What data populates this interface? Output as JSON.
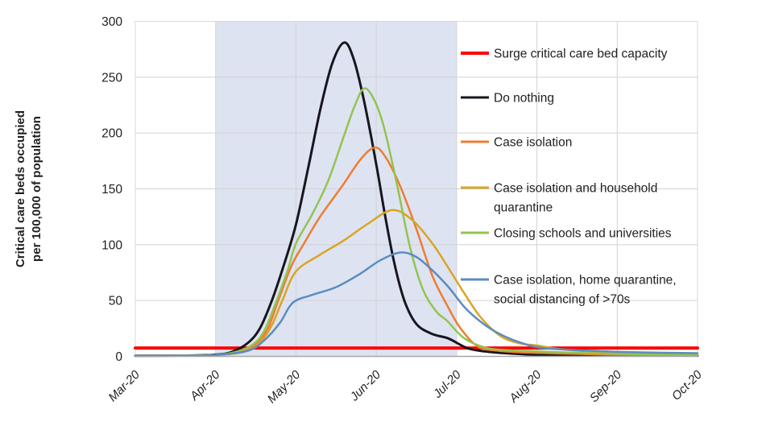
{
  "figure": {
    "background": "#ffffff",
    "border_color": "#d9d9d9",
    "gridline_color": "#d2d2d2",
    "axis_line_color": "#a6a6a6"
  },
  "chart_data": {
    "type": "line",
    "title": "",
    "ylabel_lines": [
      "Critical care beds occupied",
      "per 100,000 of population"
    ],
    "xlabel": "",
    "x_tick_labels": [
      "Mar-20",
      "Apr-20",
      "May-20",
      "Jun-20",
      "Jul-20",
      "Aug-20",
      "Sep-20",
      "Oct-20"
    ],
    "x_months_range": [
      0,
      7
    ],
    "y_ticks": [
      0,
      50,
      100,
      150,
      200,
      250,
      300
    ],
    "ylim": [
      0,
      300
    ],
    "grid": true,
    "legend_position": "right-inside",
    "shaded_region": {
      "from_month": 1,
      "to_month": 4,
      "from_label": "Apr-20",
      "to_label": "Jul-20",
      "color": "#dee3f2"
    },
    "series": [
      {
        "name": "Surge critical care bed capacity",
        "color": "#fe0000",
        "width": 4,
        "straight": true,
        "points": [
          [
            0,
            7.5
          ],
          [
            7,
            7.5
          ]
        ]
      },
      {
        "name": "Do nothing",
        "color": "#16161e",
        "width": 3,
        "peak": {
          "month": 2.6,
          "value": 281
        },
        "points": [
          [
            0,
            0.5
          ],
          [
            0.6,
            0.7
          ],
          [
            1,
            1.5
          ],
          [
            1.2,
            4
          ],
          [
            1.4,
            12
          ],
          [
            1.55,
            25
          ],
          [
            1.7,
            50
          ],
          [
            1.85,
            82
          ],
          [
            2.0,
            118
          ],
          [
            2.15,
            168
          ],
          [
            2.3,
            220
          ],
          [
            2.45,
            262
          ],
          [
            2.6,
            281
          ],
          [
            2.72,
            266
          ],
          [
            2.85,
            228
          ],
          [
            3.0,
            172
          ],
          [
            3.1,
            130
          ],
          [
            3.22,
            85
          ],
          [
            3.35,
            50
          ],
          [
            3.5,
            29
          ],
          [
            3.7,
            20
          ],
          [
            3.9,
            16
          ],
          [
            4.13,
            7.5
          ],
          [
            4.35,
            4.5
          ],
          [
            4.6,
            2.9
          ],
          [
            5.0,
            1.4
          ],
          [
            5.5,
            1.0
          ],
          [
            6.0,
            0.8
          ],
          [
            6.5,
            0.7
          ],
          [
            7,
            0.7
          ]
        ]
      },
      {
        "name": "Case isolation",
        "color": "#ed7d31",
        "width": 2.5,
        "peak": {
          "month": 2.98,
          "value": 187
        },
        "points": [
          [
            0,
            0.5
          ],
          [
            0.6,
            0.7
          ],
          [
            1,
            1.2
          ],
          [
            1.3,
            4
          ],
          [
            1.5,
            11
          ],
          [
            1.65,
            25
          ],
          [
            1.78,
            50
          ],
          [
            1.95,
            82
          ],
          [
            2.1,
            101
          ],
          [
            2.3,
            125
          ],
          [
            2.58,
            153
          ],
          [
            2.8,
            176
          ],
          [
            2.98,
            187
          ],
          [
            3.12,
            178
          ],
          [
            3.3,
            152
          ],
          [
            3.5,
            114
          ],
          [
            3.7,
            72
          ],
          [
            3.88,
            46
          ],
          [
            4.05,
            25
          ],
          [
            4.26,
            9
          ],
          [
            4.5,
            5.2
          ],
          [
            4.75,
            3.8
          ],
          [
            5.0,
            3.2
          ],
          [
            5.5,
            2.2
          ],
          [
            6.0,
            1.5
          ],
          [
            6.5,
            1.2
          ],
          [
            7,
            1.0
          ]
        ]
      },
      {
        "name": "Case isolation and household quarantine",
        "color": "#d9a425",
        "width": 2.5,
        "peak": {
          "month": 3.2,
          "value": 131
        },
        "points": [
          [
            0,
            0.5
          ],
          [
            0.6,
            0.7
          ],
          [
            1,
            1.2
          ],
          [
            1.35,
            4
          ],
          [
            1.55,
            12
          ],
          [
            1.7,
            28
          ],
          [
            1.83,
            50
          ],
          [
            2.0,
            76
          ],
          [
            2.3,
            91
          ],
          [
            2.6,
            104
          ],
          [
            2.9,
            119
          ],
          [
            3.2,
            131
          ],
          [
            3.45,
            122
          ],
          [
            3.7,
            101
          ],
          [
            3.9,
            79
          ],
          [
            4.1,
            56
          ],
          [
            4.3,
            35
          ],
          [
            4.55,
            18
          ],
          [
            4.8,
            11.5
          ],
          [
            5.0,
            9.8
          ],
          [
            5.25,
            6.8
          ],
          [
            5.5,
            5.1
          ],
          [
            5.75,
            4.2
          ],
          [
            6.0,
            3.3
          ],
          [
            6.5,
            2.4
          ],
          [
            7,
            1.9
          ]
        ]
      },
      {
        "name": "Closing schools and universities",
        "color": "#94c34f",
        "width": 2.5,
        "peak": {
          "month": 2.85,
          "value": 240
        },
        "points": [
          [
            0,
            0.5
          ],
          [
            0.6,
            0.7
          ],
          [
            1,
            1.2
          ],
          [
            1.25,
            4
          ],
          [
            1.45,
            10
          ],
          [
            1.6,
            22
          ],
          [
            1.76,
            50
          ],
          [
            1.9,
            78
          ],
          [
            2.0,
            101
          ],
          [
            2.2,
            127
          ],
          [
            2.4,
            157
          ],
          [
            2.6,
            198
          ],
          [
            2.73,
            224
          ],
          [
            2.85,
            240
          ],
          [
            2.98,
            229
          ],
          [
            3.1,
            204
          ],
          [
            3.26,
            153
          ],
          [
            3.42,
            98
          ],
          [
            3.58,
            60
          ],
          [
            3.75,
            40
          ],
          [
            3.88,
            32
          ],
          [
            4.1,
            16
          ],
          [
            4.38,
            7.5
          ],
          [
            4.7,
            5.3
          ],
          [
            5.0,
            4.5
          ],
          [
            5.5,
            3.2
          ],
          [
            6.0,
            2.2
          ],
          [
            6.5,
            1.6
          ],
          [
            7,
            1.2
          ]
        ]
      },
      {
        "name": "Case isolation, home quarantine, social distancing of >70s",
        "color": "#5b8dbe",
        "width": 2.5,
        "peak": {
          "month": 3.3,
          "value": 93
        },
        "points": [
          [
            0,
            0.5
          ],
          [
            0.6,
            0.7
          ],
          [
            1,
            1.2
          ],
          [
            1.4,
            5
          ],
          [
            1.6,
            14
          ],
          [
            1.8,
            30
          ],
          [
            1.96,
            48
          ],
          [
            2.2,
            55
          ],
          [
            2.5,
            62
          ],
          [
            2.8,
            74
          ],
          [
            3.05,
            86
          ],
          [
            3.3,
            93
          ],
          [
            3.5,
            89
          ],
          [
            3.7,
            77
          ],
          [
            3.9,
            62
          ],
          [
            4.1,
            44
          ],
          [
            4.3,
            31
          ],
          [
            4.5,
            21.5
          ],
          [
            4.73,
            14
          ],
          [
            5.0,
            8.2
          ],
          [
            5.3,
            6.3
          ],
          [
            5.6,
            5.2
          ],
          [
            6.0,
            4.1
          ],
          [
            6.5,
            3.3
          ],
          [
            7,
            2.9
          ]
        ]
      }
    ],
    "legend": [
      {
        "series": 0,
        "lines": [
          "Surge critical care bed capacity"
        ]
      },
      {
        "series": 1,
        "lines": [
          "Do nothing"
        ]
      },
      {
        "series": 2,
        "lines": [
          "Case isolation"
        ]
      },
      {
        "series": 3,
        "lines": [
          "Case isolation and household",
          "quarantine"
        ]
      },
      {
        "series": 4,
        "lines": [
          "Closing schools and universities"
        ]
      },
      {
        "series": 5,
        "lines": [
          "Case isolation, home quarantine,",
          "social distancing of >70s"
        ]
      }
    ]
  }
}
